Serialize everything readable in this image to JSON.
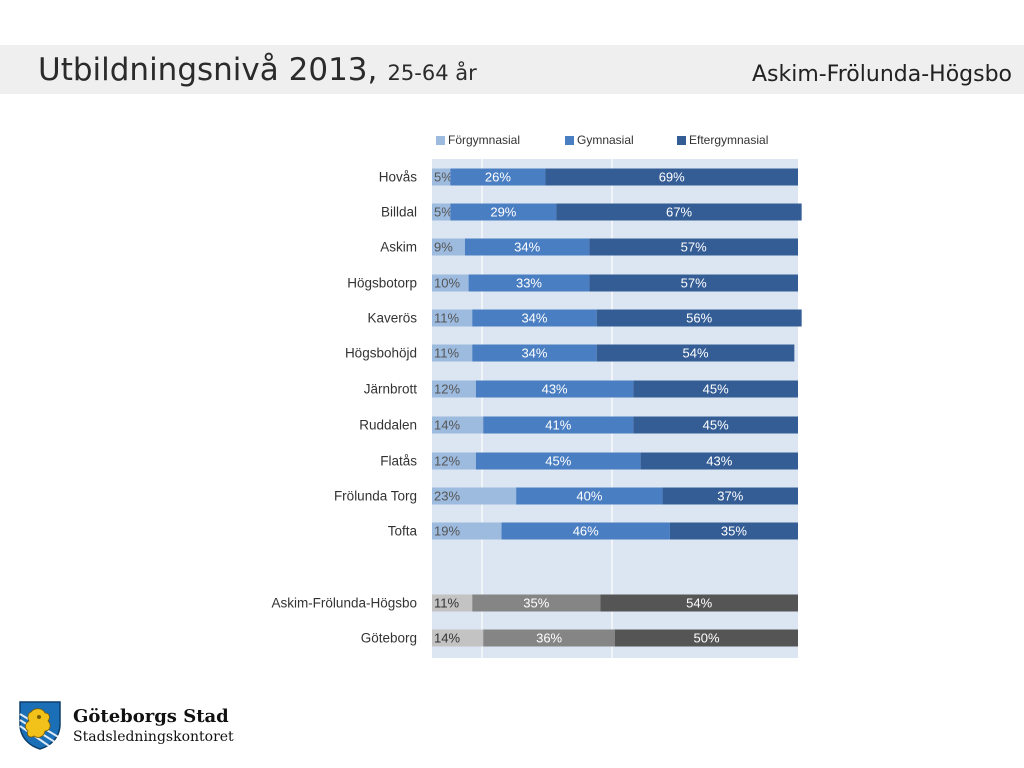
{
  "header": {
    "title": "Utbildningsnivå 2013,",
    "subtitle": "25-64 år",
    "region": "Askim-Frölunda-Högsbo"
  },
  "chart_data": {
    "type": "bar",
    "orientation": "horizontal",
    "stacked": true,
    "percent_stacked": true,
    "legend_position": "top",
    "grid": true,
    "categories": [
      "Hovås",
      "Billdal",
      "Askim",
      "Högsbotorp",
      "Kaverös",
      "Högsbohöjd",
      "Järnbrott",
      "Ruddalen",
      "Flatås",
      "Frölunda Torg",
      "Tofta",
      "Askim-Frölunda-Högsbo",
      "Göteborg"
    ],
    "series": [
      {
        "name": "Förgymnasial",
        "values": [
          5,
          5,
          9,
          10,
          11,
          11,
          12,
          14,
          12,
          23,
          19,
          11,
          14
        ]
      },
      {
        "name": "Gymnasial",
        "values": [
          26,
          29,
          34,
          33,
          34,
          34,
          43,
          41,
          45,
          40,
          46,
          35,
          36
        ]
      },
      {
        "name": "Eftergymnasial",
        "values": [
          69,
          67,
          57,
          57,
          56,
          54,
          45,
          45,
          43,
          37,
          35,
          54,
          50
        ]
      }
    ],
    "colors": {
      "series": [
        "#9dbbdf",
        "#4a7ec2",
        "#345d96"
      ],
      "summary": [
        "#c3c3c3",
        "#858585",
        "#555555"
      ],
      "plot_background": "#dce6f2"
    },
    "summary_rows": [
      "Askim-Frölunda-Högsbo",
      "Göteborg"
    ]
  },
  "logo": {
    "name": "Göteborgs Stad",
    "department": "Stadsledningskontoret",
    "icon": "coat-of-arms-icon",
    "colors": {
      "blue": "#1a6fb6",
      "yellow": "#f2c21b"
    }
  }
}
